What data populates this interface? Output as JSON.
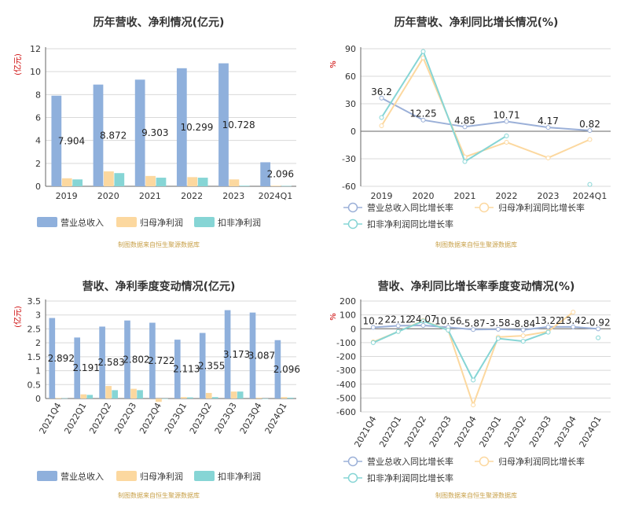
{
  "colors": {
    "revenue": "#8fb0dc",
    "parent_profit": "#fcd89f",
    "deducted_profit": "#86d5d5",
    "source_text": "#c8a14a",
    "title_text": "#333333",
    "unit_text": "#cc0000"
  },
  "chart_data": [
    {
      "type": "bar",
      "title": "历年营收、净利情况(亿元)",
      "ylabel": "(亿元)",
      "ylim": [
        0,
        12
      ],
      "yticks": [
        "0",
        "2",
        "4",
        "6",
        "8",
        "10",
        "12"
      ],
      "grid": true,
      "legend": "bottom",
      "categories": [
        "2019",
        "2020",
        "2021",
        "2022",
        "2023",
        "2024Q1"
      ],
      "series": [
        {
          "name": "营业总收入",
          "values": [
            7.904,
            8.872,
            9.303,
            10.299,
            10.728,
            2.096
          ]
        },
        {
          "name": "归母净利润",
          "values": [
            0.7,
            1.3,
            0.9,
            0.8,
            0.6,
            0.05
          ]
        },
        {
          "name": "扣非净利润",
          "values": [
            0.6,
            1.15,
            0.75,
            0.75,
            0.05,
            0.03
          ]
        }
      ],
      "data_labels": [
        "7.904",
        "8.872",
        "9.303",
        "10.299",
        "10.728",
        "2.096"
      ],
      "source": "制图数据来自恒生聚源数据库"
    },
    {
      "type": "line",
      "title": "历年营收、净利同比增长情况(%)",
      "ylabel": "%",
      "ylim": [
        -60,
        90
      ],
      "yticks": [
        "-60",
        "-30",
        "0",
        "30",
        "60",
        "90"
      ],
      "grid": true,
      "legend": "bottom",
      "categories": [
        "2019",
        "2020",
        "2021",
        "2022",
        "2023",
        "2024Q1"
      ],
      "series": [
        {
          "name": "营业总收入同比增长率",
          "values": [
            36.2,
            12.25,
            4.85,
            10.71,
            4.17,
            0.82
          ]
        },
        {
          "name": "归母净利润同比增长率",
          "values": [
            6,
            80,
            -28,
            -12,
            -29,
            -9
          ]
        },
        {
          "name": "扣非净利润同比增长率",
          "values": [
            15,
            87,
            -33,
            -5,
            null,
            -58
          ]
        }
      ],
      "data_labels": [
        "36.2",
        "12.25",
        "4.85",
        "10.71",
        "4.17",
        "0.82"
      ],
      "source": "制图数据来自恒生聚源数据库"
    },
    {
      "type": "bar",
      "title": "营收、净利季度变动情况(亿元)",
      "ylabel": "(亿元)",
      "ylim": [
        0,
        3.5
      ],
      "yticks": [
        "0",
        "0.5",
        "1",
        "1.5",
        "2",
        "2.5",
        "3",
        "3.5"
      ],
      "grid": true,
      "legend": "bottom",
      "categories": [
        "2021Q4",
        "2022Q1",
        "2022Q2",
        "2022Q3",
        "2022Q4",
        "2023Q1",
        "2023Q2",
        "2023Q3",
        "2023Q4",
        "2024Q1"
      ],
      "series": [
        {
          "name": "营业总收入",
          "values": [
            2.892,
            2.191,
            2.583,
            2.802,
            2.722,
            2.113,
            2.355,
            3.173,
            3.087,
            2.096
          ]
        },
        {
          "name": "归母净利润",
          "values": [
            0.02,
            0.15,
            0.45,
            0.35,
            -0.12,
            0.05,
            0.2,
            0.25,
            0.03,
            0.05
          ]
        },
        {
          "name": "扣非净利润",
          "values": [
            0.01,
            0.13,
            0.3,
            0.3,
            0.0,
            0.04,
            0.05,
            0.25,
            0.0,
            0.03
          ]
        }
      ],
      "data_labels": [
        "2.892",
        "2.191",
        "2.583",
        "2.802",
        "2.722",
        "2.113",
        "2.355",
        "3.173",
        "3.087",
        "2.096"
      ],
      "source": "制图数据来自恒生聚源数据库"
    },
    {
      "type": "line",
      "title": "营收、净利同比增长率季度变动情况(%)",
      "ylabel": "%",
      "ylim": [
        -600,
        200
      ],
      "yticks": [
        "-600",
        "-500",
        "-400",
        "-300",
        "-200",
        "-100",
        "0",
        "100",
        "200"
      ],
      "grid": true,
      "legend": "bottom",
      "categories": [
        "2021Q4",
        "2022Q1",
        "2022Q2",
        "2022Q3",
        "2022Q4",
        "2023Q1",
        "2023Q2",
        "2023Q3",
        "2023Q4",
        "2024Q1"
      ],
      "series": [
        {
          "name": "营业总收入同比增长率",
          "values": [
            10.2,
            22.12,
            24.07,
            10.56,
            -5.87,
            -3.58,
            -8.84,
            13.22,
            13.42,
            -0.92
          ]
        },
        {
          "name": "归母净利润同比增长率",
          "values": [
            -95,
            -20,
            60,
            -10,
            -550,
            -60,
            -50,
            -20,
            120,
            null
          ]
        },
        {
          "name": "扣非净利润同比增长率",
          "values": [
            -100,
            -20,
            55,
            -10,
            -370,
            -70,
            -90,
            -25,
            null,
            -65
          ]
        }
      ],
      "data_labels": [
        "10.2",
        "22.12",
        "24.07",
        "10.56",
        "-5.87",
        "-3.58",
        "-8.84",
        "13.22",
        "13.42",
        "-0.92"
      ],
      "source": "制图数据来自恒生聚源数据库"
    }
  ]
}
